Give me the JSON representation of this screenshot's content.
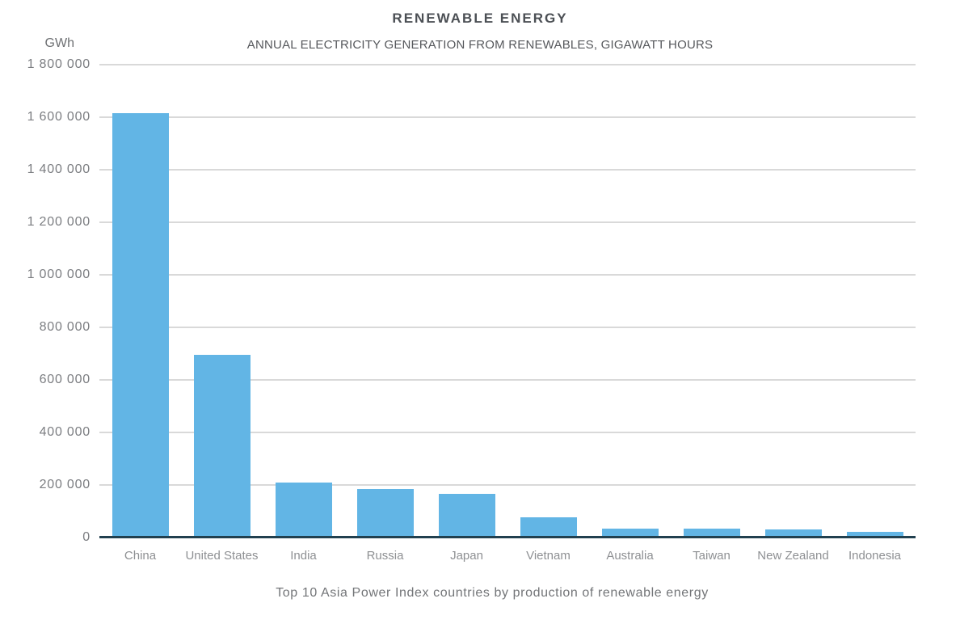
{
  "chart_data": {
    "type": "bar",
    "title": "RENEWABLE ENERGY",
    "subtitle": "ANNUAL ELECTRICITY GENERATION FROM RENEWABLES, GIGAWATT HOURS",
    "y_axis_unit": "GWh",
    "caption": "Top 10 Asia Power Index countries by production of renewable energy",
    "categories": [
      "China",
      "United States",
      "India",
      "Russia",
      "Japan",
      "Vietnam",
      "Australia",
      "Taiwan",
      "New Zealand",
      "Indonesia"
    ],
    "values": [
      1615000,
      695000,
      210000,
      185000,
      165000,
      77000,
      35000,
      35000,
      30000,
      22000
    ],
    "xlabel": "",
    "ylabel": "GWh",
    "ylim": [
      0,
      1800000
    ],
    "ytick_step": 200000,
    "ytick_labels": [
      "0",
      "200 000",
      "400 000",
      "600 000",
      "800 000",
      "1 000 000",
      "1 200 000",
      "1 400 000",
      "1 600 000",
      "1 800 000"
    ],
    "grid": true,
    "legend": "none",
    "colors": {
      "bar": "#62b5e5",
      "axis_line": "#21404f",
      "gridline": "#d9d9d9"
    }
  }
}
